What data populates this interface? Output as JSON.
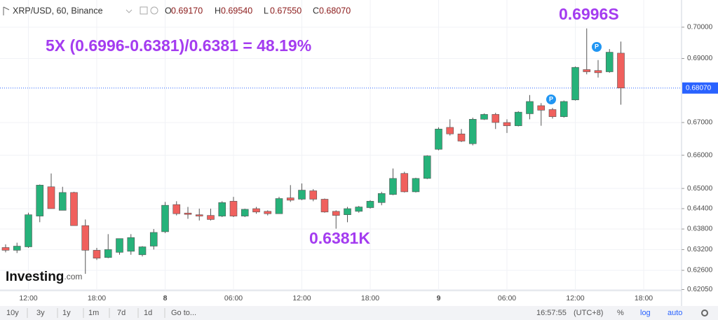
{
  "legend_bar": {
    "symbol": "XRP/USD, 60, Binance",
    "ohlc": [
      {
        "key": "O",
        "value": "0.69170"
      },
      {
        "key": "H",
        "value": "0.69540"
      },
      {
        "key": "L",
        "value": "0.67550"
      },
      {
        "key": "C",
        "value": "0.68070"
      }
    ]
  },
  "chart_data": {
    "type": "candlestick",
    "annotations": [
      "5X (0.6996-0.6381)/0.6381 = 48.19%",
      "0.6996S",
      "0.6381K"
    ],
    "watermark": "Investing",
    "watermark_suffix": ".com",
    "categories": [
      null,
      null,
      "12:00",
      null,
      null,
      null,
      null,
      null,
      "18:00",
      null,
      null,
      null,
      null,
      null,
      "8",
      null,
      null,
      null,
      null,
      null,
      "06:00",
      null,
      null,
      null,
      null,
      null,
      "12:00",
      null,
      null,
      null,
      null,
      null,
      "18:00",
      null,
      null,
      null,
      null,
      null,
      "9",
      null,
      null,
      null,
      null,
      null,
      "06:00",
      null,
      null,
      null,
      null,
      null,
      "12:00",
      null,
      null,
      null,
      null,
      null,
      "18:00"
    ],
    "open": [
      0.6326,
      0.6318,
      0.6328,
      0.6418,
      0.6505,
      0.6435,
      0.6488,
      0.639,
      0.6318,
      0.6297,
      0.6312,
      0.6315,
      0.6305,
      0.633,
      0.6372,
      0.6452,
      0.6427,
      0.6422,
      0.642,
      0.6418,
      0.6462,
      0.6418,
      0.644,
      0.6432,
      0.6425,
      0.6472,
      0.6468,
      0.6493,
      0.6468,
      0.6432,
      0.6422,
      0.6432,
      0.6443,
      0.6458,
      0.6482,
      0.6545,
      0.649,
      0.653,
      0.6618,
      0.6685,
      0.6665,
      0.6635,
      0.671,
      0.6725,
      0.67,
      0.669,
      0.6727,
      0.6752,
      0.674,
      0.6718,
      0.677,
      0.6865,
      0.6862,
      0.6858,
      0.6917,
      null,
      null
    ],
    "high": [
      0.6335,
      0.634,
      0.6428,
      0.6512,
      0.6545,
      0.6505,
      0.649,
      0.6408,
      0.6325,
      0.6365,
      0.6352,
      0.6365,
      0.633,
      0.638,
      0.646,
      0.6462,
      0.6445,
      0.644,
      0.644,
      0.6462,
      0.6475,
      0.644,
      0.6445,
      0.6435,
      0.6475,
      0.651,
      0.6515,
      0.6498,
      0.647,
      0.6435,
      0.6445,
      0.6448,
      0.6465,
      0.649,
      0.656,
      0.655,
      0.6532,
      0.66,
      0.6685,
      0.671,
      0.668,
      0.6715,
      0.6728,
      0.673,
      0.671,
      0.6735,
      0.6785,
      0.676,
      0.6745,
      0.6768,
      0.6875,
      0.6996,
      0.6895,
      0.693,
      0.6954,
      null,
      null
    ],
    "low": [
      0.6312,
      0.631,
      0.6325,
      0.64,
      0.644,
      0.6435,
      0.639,
      0.625,
      0.629,
      0.6295,
      0.6305,
      0.6305,
      0.63,
      0.632,
      0.6368,
      0.642,
      0.641,
      0.6405,
      0.6405,
      0.6415,
      0.6415,
      0.6415,
      0.6425,
      0.642,
      0.6425,
      0.646,
      0.6465,
      0.6462,
      0.6428,
      0.6381,
      0.64,
      0.6428,
      0.644,
      0.645,
      0.648,
      0.6488,
      0.6488,
      0.6528,
      0.6615,
      0.666,
      0.664,
      0.663,
      0.6708,
      0.668,
      0.6668,
      0.6688,
      0.671,
      0.669,
      0.6712,
      0.6715,
      0.6768,
      0.685,
      0.684,
      0.6855,
      0.6755,
      null,
      null
    ],
    "close": [
      0.6318,
      0.633,
      0.6422,
      0.651,
      0.644,
      0.6488,
      0.639,
      0.6318,
      0.6295,
      0.632,
      0.6352,
      0.6355,
      0.6328,
      0.637,
      0.645,
      0.6425,
      0.6423,
      0.6418,
      0.6408,
      0.6458,
      0.6418,
      0.6438,
      0.643,
      0.6425,
      0.647,
      0.6465,
      0.6495,
      0.6468,
      0.643,
      0.642,
      0.644,
      0.6445,
      0.6462,
      0.6485,
      0.653,
      0.649,
      0.653,
      0.6598,
      0.668,
      0.6665,
      0.6643,
      0.671,
      0.6725,
      0.67,
      0.669,
      0.6732,
      0.6765,
      0.6738,
      0.6718,
      0.6765,
      0.6872,
      0.6858,
      0.6855,
      0.692,
      0.6807,
      null,
      null
    ],
    "up_color": "#26b27a",
    "down_color": "#f0605d",
    "ylim": [
      0.6202,
      0.7088
    ],
    "log_scale": true,
    "grid": true,
    "yticks": [
      {
        "value": 0.7,
        "label": "0.70000"
      },
      {
        "value": 0.69,
        "label": "0.69000"
      },
      {
        "value": 0.67,
        "label": "0.67000"
      },
      {
        "value": 0.66,
        "label": "0.66000"
      },
      {
        "value": 0.65,
        "label": "0.65000"
      },
      {
        "value": 0.644,
        "label": "0.64400"
      },
      {
        "value": 0.638,
        "label": "0.63800"
      },
      {
        "value": 0.632,
        "label": "0.63200"
      },
      {
        "value": 0.626,
        "label": "0.62600"
      },
      {
        "value": 0.6205,
        "label": "0.62050"
      }
    ],
    "last_price": {
      "value": 0.6807,
      "label": "0.68070"
    }
  },
  "toolbar": {
    "ranges": [
      "10y",
      "3y",
      "1y",
      "1m",
      "7d",
      "1d"
    ],
    "goto": "Go to...",
    "time": "16:57:55",
    "timezone": "(UTC+8)",
    "percent": "%",
    "log": "log",
    "auto": "auto"
  }
}
